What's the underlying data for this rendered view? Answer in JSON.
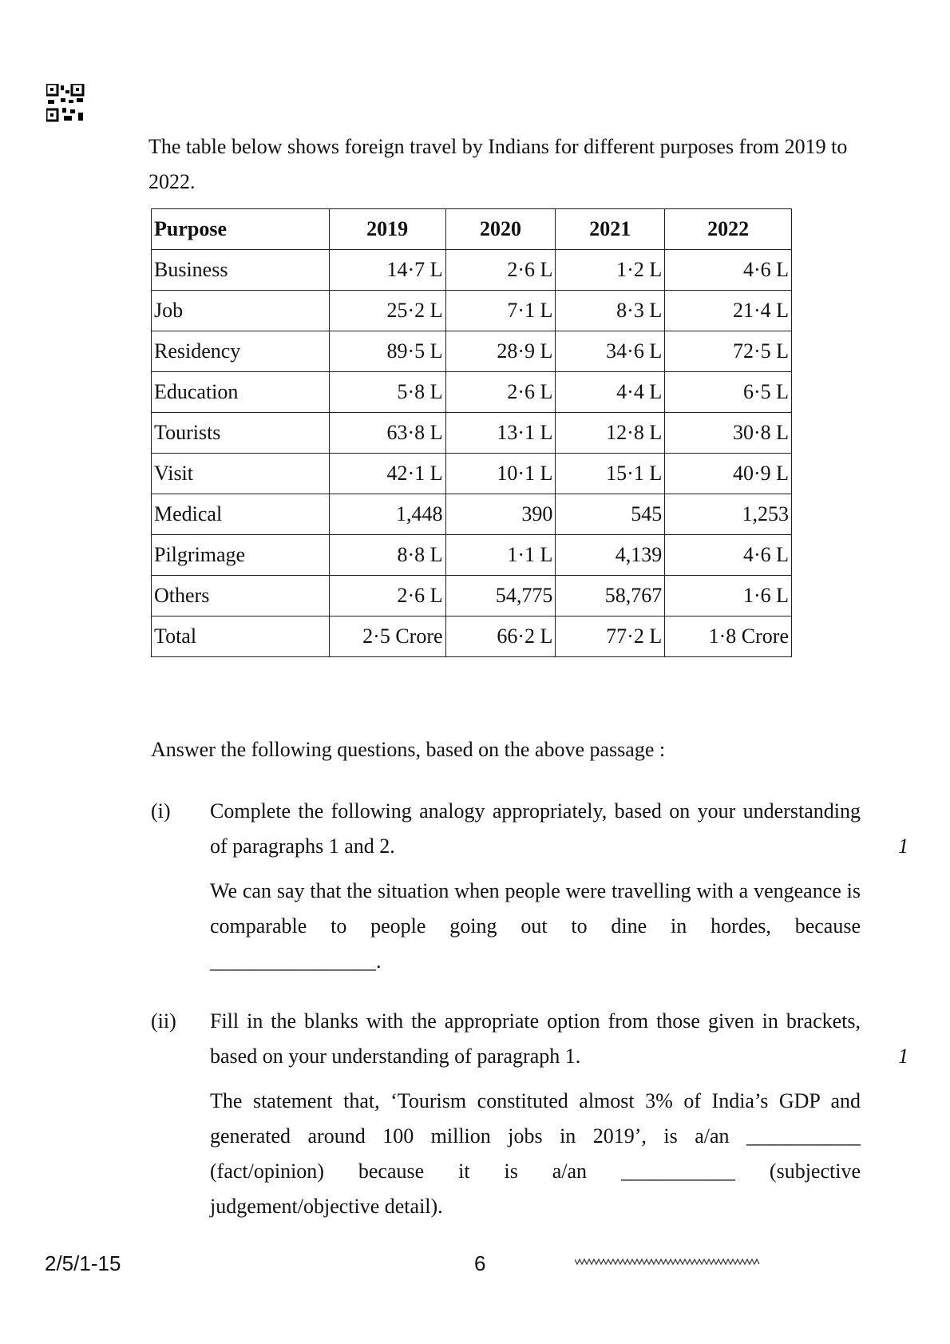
{
  "intro": "The table below shows foreign travel by Indians for different purposes from 2019 to 2022.",
  "table": {
    "header": [
      "Purpose",
      "2019",
      "2020",
      "2021",
      "2022"
    ],
    "rows": [
      [
        "Business",
        "14·7 L",
        "2·6 L",
        "1·2 L",
        "4·6 L"
      ],
      [
        "Job",
        "25·2 L",
        "7·1 L",
        "8·3 L",
        "21·4 L"
      ],
      [
        "Residency",
        "89·5 L",
        "28·9 L",
        "34·6 L",
        "72·5 L"
      ],
      [
        "Education",
        "5·8 L",
        "2·6 L",
        "4·4 L",
        "6·5 L"
      ],
      [
        "Tourists",
        "63·8 L",
        "13·1 L",
        "12·8 L",
        "30·8 L"
      ],
      [
        "Visit",
        "42·1 L",
        "10·1 L",
        "15·1 L",
        "40·9 L"
      ],
      [
        "Medical",
        "1,448",
        "390",
        "545",
        "1,253"
      ],
      [
        "Pilgrimage",
        "8·8 L",
        "1·1 L",
        "4,139",
        "4·6 L"
      ],
      [
        "Others",
        "2·6 L",
        "54,775",
        "58,767",
        "1·6 L"
      ],
      [
        "Total",
        "2·5 Crore",
        "66·2 L",
        "77·2 L",
        "1·8 Crore"
      ]
    ]
  },
  "instruction": "Answer the following questions, based on the above passage :",
  "questions": [
    {
      "number": "(i)",
      "text": "Complete the following analogy appropriately, based on your understanding of paragraphs 1 and 2.",
      "marks": "1",
      "detail": "We can say that the situation when people were travelling with a vengeance is comparable to people going out to dine in hordes, because ________________."
    },
    {
      "number": "(ii)",
      "text": "Fill in the blanks with the appropriate option from those given in brackets, based on your understanding of paragraph 1.",
      "marks": "1",
      "detail": "The statement that, ‘Tourism constituted almost 3% of India’s GDP and generated around 100 million jobs in 2019’, is a/an ___________ (fact/opinion) because it is a/an ___________ (subjective judgement/objective detail)."
    }
  ],
  "footer": {
    "code": "2/5/1-15",
    "page": "6"
  }
}
